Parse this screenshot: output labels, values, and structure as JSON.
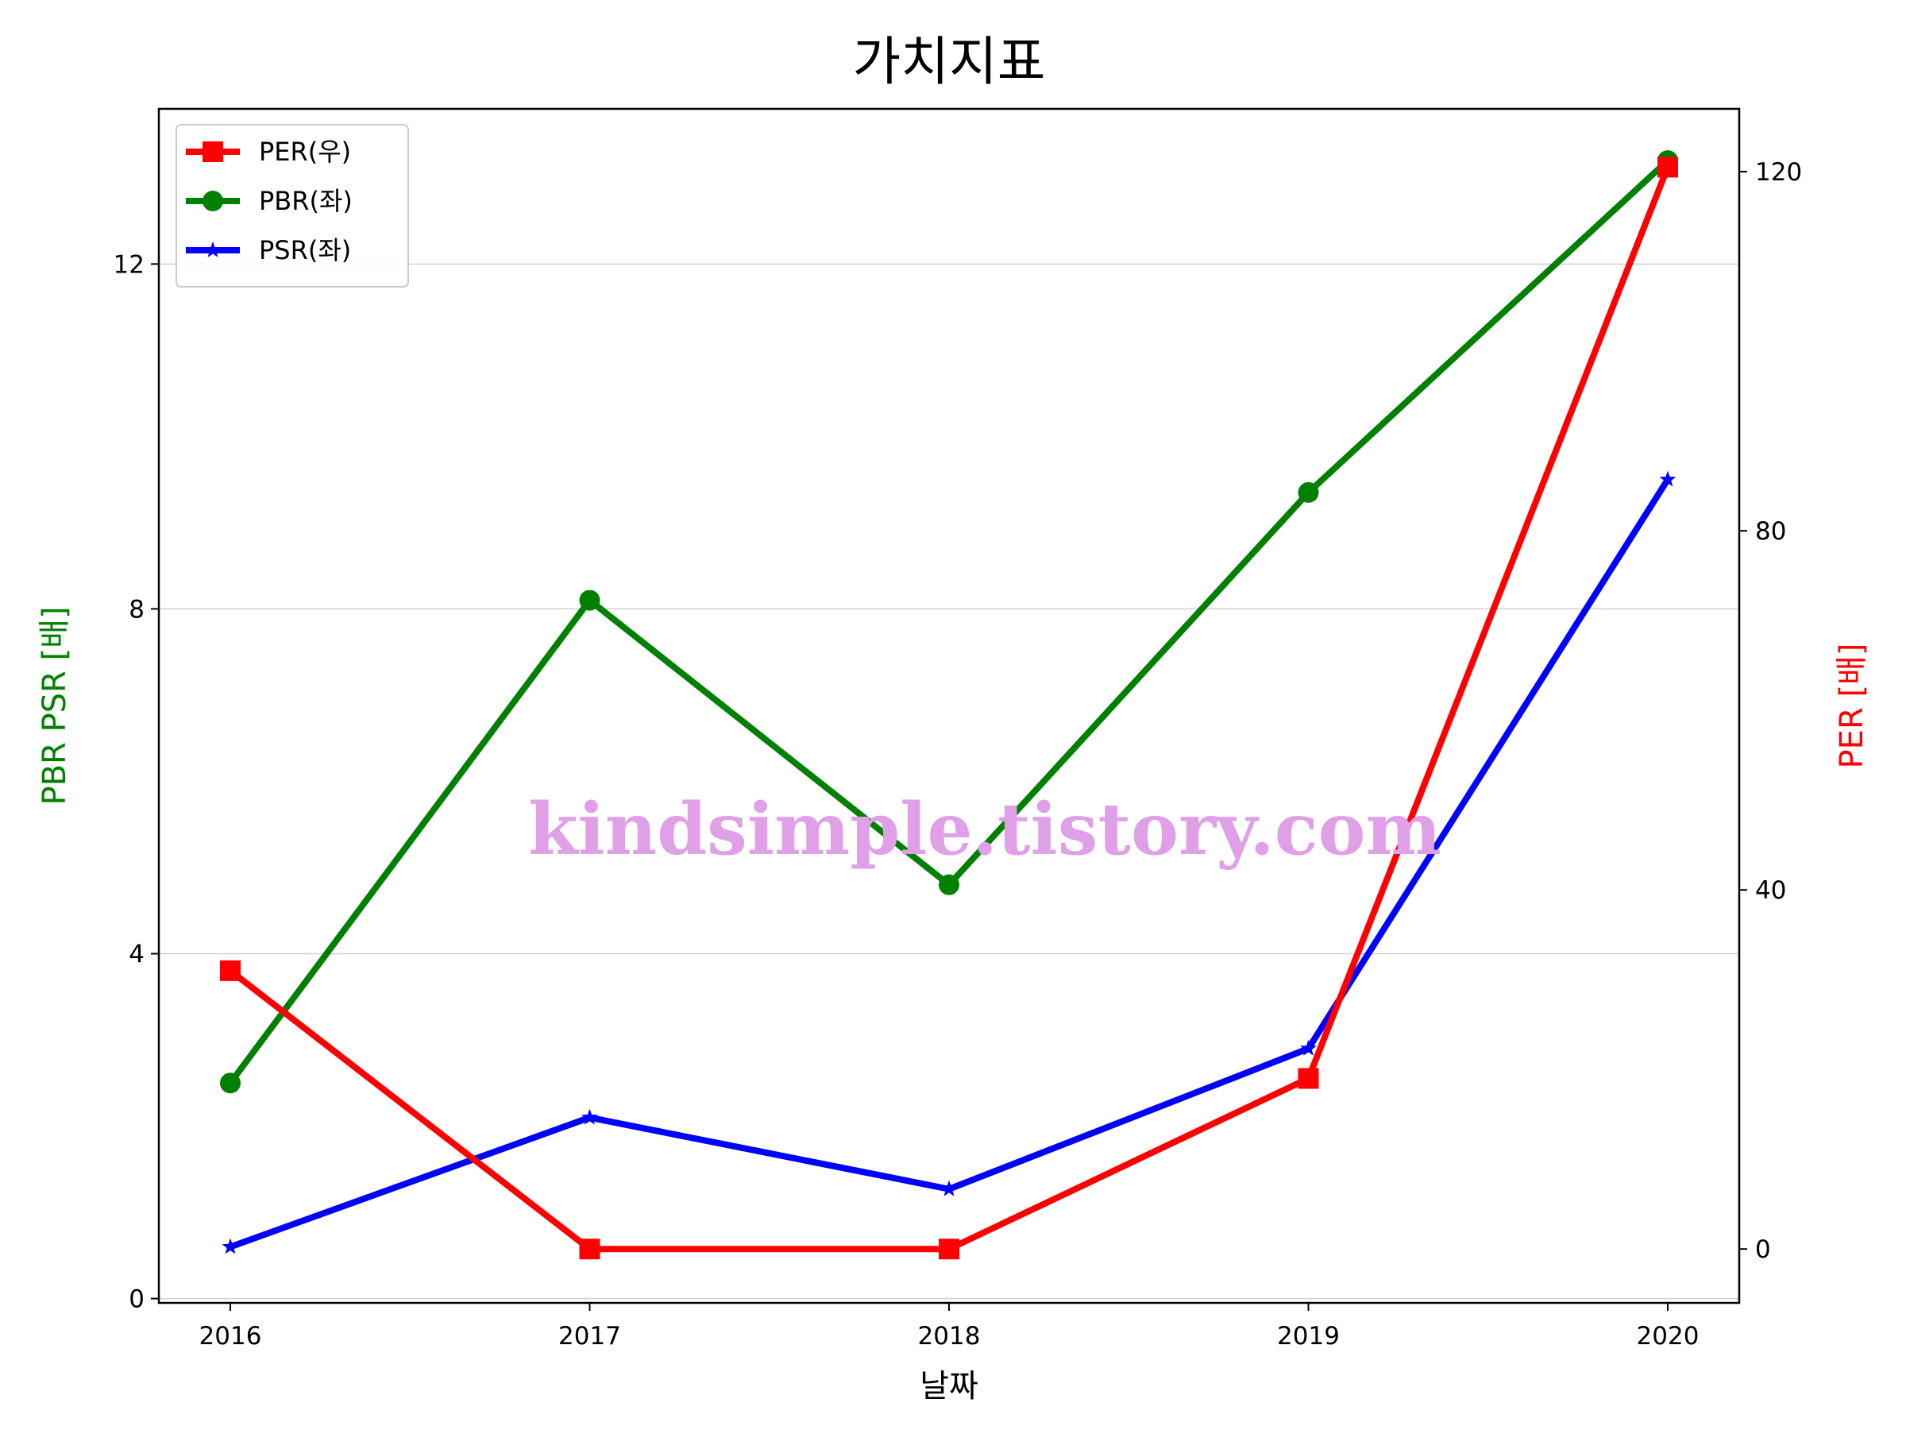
{
  "chart_data": {
    "type": "line",
    "title": "가치지표",
    "xlabel": "날짜",
    "ylabel_left": "PBR PSR [배]",
    "ylabel_right": "PER [배]",
    "categories": [
      "2016",
      "2017",
      "2018",
      "2019",
      "2020"
    ],
    "ylim_left": [
      -0.05,
      13.8
    ],
    "ylim_right": [
      -6,
      127
    ],
    "yticks_left": [
      "0",
      "4",
      "8",
      "12"
    ],
    "yticks_right": [
      "0",
      "40",
      "80",
      "120"
    ],
    "grid": "horizontal",
    "legend_position": "top-left",
    "series": [
      {
        "name": "PER(우)",
        "axis": "right",
        "color": "#ff0000",
        "marker": "square",
        "values": [
          31,
          0,
          0,
          19,
          120.5
        ]
      },
      {
        "name": "PBR(좌)",
        "axis": "left",
        "color": "#008000",
        "marker": "circle",
        "values": [
          2.5,
          8.1,
          4.8,
          9.35,
          13.2
        ]
      },
      {
        "name": "PSR(좌)",
        "axis": "left",
        "color": "#0000ff",
        "marker": "star",
        "values": [
          0.6,
          2.1,
          1.27,
          2.9,
          9.5
        ]
      }
    ],
    "watermark": "kindsimple.tistory.com"
  }
}
